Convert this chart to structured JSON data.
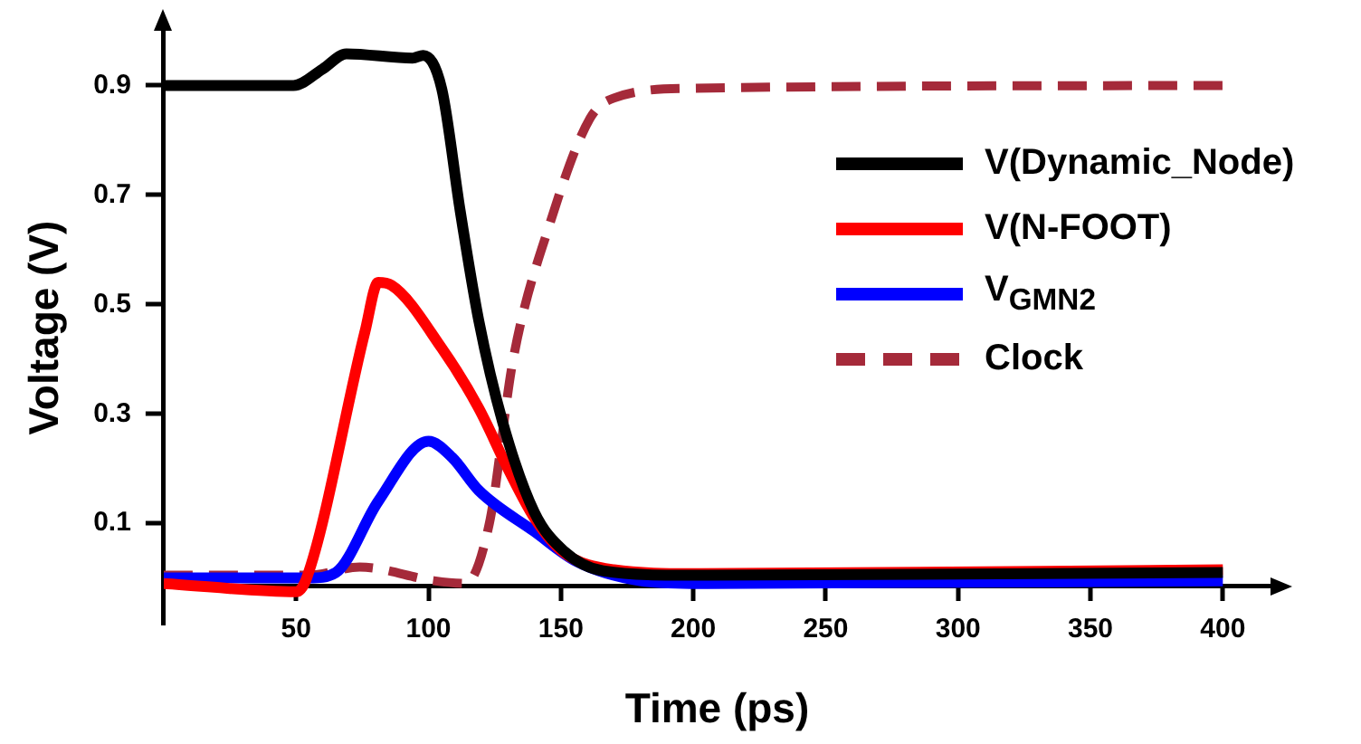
{
  "chart_data": {
    "type": "line",
    "xlabel": "Time (ps)",
    "ylabel": "Voltage (V)",
    "xlim": [
      0,
      418
    ],
    "xticks": [
      50,
      100,
      150,
      200,
      250,
      300,
      350,
      400
    ],
    "ylim": [
      -0.085,
      1.0
    ],
    "yticks": [
      0.1,
      0.3,
      0.5,
      0.7,
      0.9
    ],
    "grid": false,
    "legend": "top right",
    "marker": "none",
    "series": [
      {
        "name": "V(Dynamic_Node)",
        "color": "#000000",
        "line_style": "solid",
        "x": [
          0,
          49,
          60,
          69,
          94,
          98,
          105,
          112,
          119,
          128,
          140,
          151,
          166,
          200,
          400
        ],
        "values": [
          0.9,
          0.9,
          0.93,
          0.958,
          0.95,
          0.955,
          0.894,
          0.67,
          0.47,
          0.285,
          0.12,
          0.05,
          0.013,
          0.005,
          0.01
        ]
      },
      {
        "name": "V(N-FOOT)",
        "color": "#ff0000",
        "line_style": "solid",
        "x": [
          0,
          50,
          54,
          76,
          81,
          86,
          105,
          119,
          130,
          140,
          151,
          170,
          200,
          400
        ],
        "values": [
          -0.01,
          -0.025,
          0,
          0.45,
          0.54,
          0.535,
          0.42,
          0.31,
          0.2,
          0.11,
          0.047,
          0.015,
          0.008,
          0.015
        ]
      },
      {
        "name": "V$_{GMN2}$",
        "color": "#0000ff",
        "line_style": "solid",
        "x": [
          0,
          55,
          65,
          81,
          100,
          109,
          119,
          140,
          156,
          180,
          200,
          400
        ],
        "values": [
          0,
          0,
          0.01,
          0.14,
          0.25,
          0.22,
          0.16,
          0.085,
          0.03,
          -0.005,
          -0.01,
          -0.005
        ]
      },
      {
        "name": "Clock",
        "color": "#a52a3a",
        "line_style": "dashed",
        "x": [
          0,
          55,
          74,
          102,
          114,
          123,
          132,
          146,
          161,
          170,
          200,
          400
        ],
        "values": [
          0.005,
          0.005,
          0.02,
          -0.005,
          -0.01,
          0.1,
          0.4,
          0.65,
          0.84,
          0.877,
          0.895,
          0.9
        ]
      }
    ]
  }
}
